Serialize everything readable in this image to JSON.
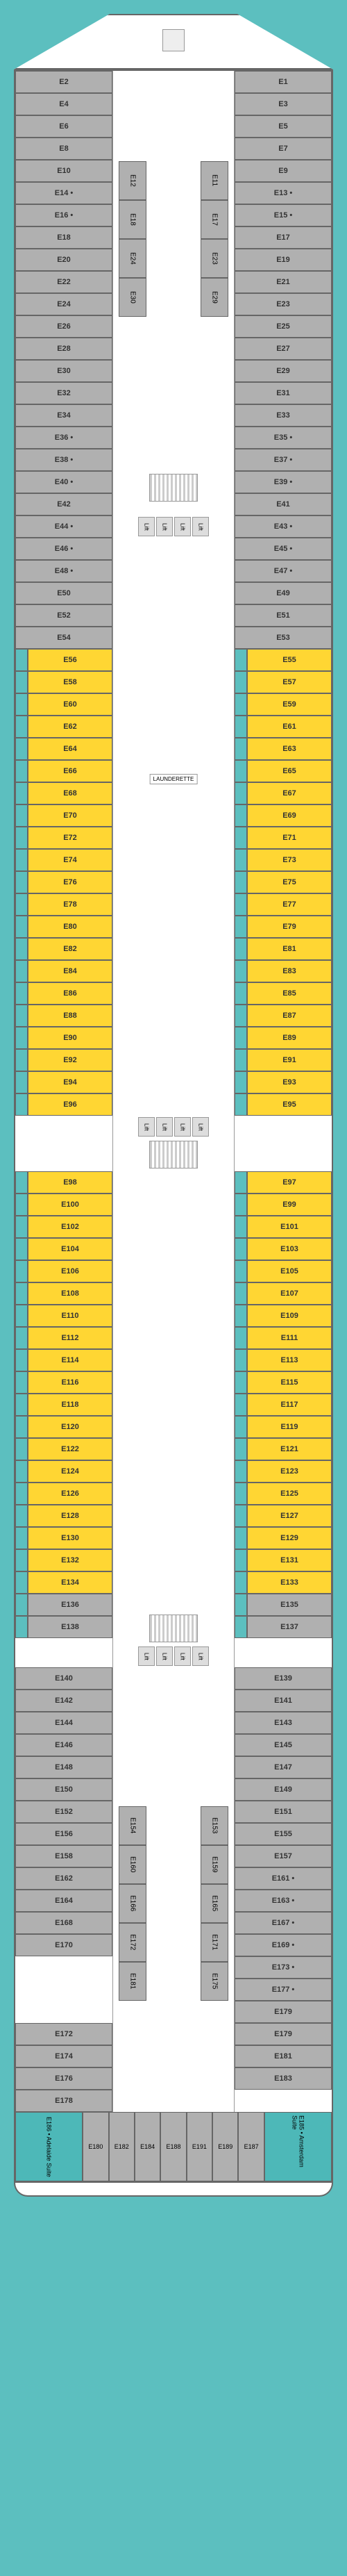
{
  "colors": {
    "water": "#5cbfbf",
    "gray_cabin": "#b0b0b0",
    "yellow_cabin": "#ffd633",
    "teal_cabin": "#4db8b8",
    "white": "#ffffff",
    "border": "#666666"
  },
  "labels": {
    "lift": "Lift",
    "launderette": "LAUNDERETTE"
  },
  "suites": {
    "port": "E186 • Adelaide Suite",
    "starboard": "E185 • Amsterdam Suite"
  },
  "sections": {
    "forward_gray": {
      "port": [
        "E2",
        "E4",
        "E6",
        "E8",
        "E10",
        "E14 •",
        "E16 •",
        "E18",
        "E20",
        "E22",
        "E24",
        "E26",
        "E28",
        "E30",
        "E32",
        "E34",
        "E36 •",
        "E38 •",
        "E40 •",
        "E42",
        "E44 •",
        "E46 •",
        "E48 •",
        "E50"
      ],
      "starboard": [
        "E1",
        "E3",
        "E5",
        "E7",
        "E9",
        "E13 •",
        "E15 •",
        "E17",
        "E19",
        "E21",
        "E23",
        "E25",
        "E27",
        "E29",
        "E31",
        "E33",
        "E35 •",
        "E37 •",
        "E39 •",
        "E41",
        "E43 •",
        "E45 •",
        "E47 •",
        "E49"
      ],
      "inner_port": [
        "E12",
        "E18",
        "E24",
        "E30"
      ],
      "inner_starboard": [
        "E11",
        "E17",
        "E23",
        "E29"
      ]
    },
    "transition_gray": {
      "port": [
        "E52",
        "E54"
      ],
      "starboard": [
        "E51",
        "E53"
      ]
    },
    "midship_yellow_1": {
      "port": [
        "E56",
        "E58",
        "E60",
        "E62",
        "E64",
        "E66",
        "E68",
        "E70",
        "E72",
        "E74",
        "E76",
        "E78",
        "E80",
        "E82",
        "E84",
        "E86",
        "E88",
        "E90",
        "E92",
        "E94",
        "E96"
      ],
      "starboard": [
        "E55",
        "E57",
        "E59",
        "E61",
        "E63",
        "E65",
        "E67",
        "E69",
        "E71",
        "E73",
        "E75",
        "E77",
        "E79",
        "E81",
        "E83",
        "E85",
        "E87",
        "E89",
        "E91",
        "E93",
        "E95"
      ]
    },
    "midship_yellow_2": {
      "port": [
        "E98",
        "E100",
        "E102",
        "E104",
        "E106",
        "E108",
        "E110",
        "E112",
        "E114",
        "E116",
        "E118",
        "E120",
        "E122",
        "E124",
        "E126",
        "E128",
        "E130",
        "E132",
        "E134"
      ],
      "starboard": [
        "E97",
        "E99",
        "E101",
        "E103",
        "E105",
        "E107",
        "E109",
        "E111",
        "E113",
        "E115",
        "E117",
        "E119",
        "E121",
        "E123",
        "E125",
        "E127",
        "E129",
        "E131",
        "E133"
      ]
    },
    "aft_transition": {
      "port": [
        "E136",
        "E138"
      ],
      "starboard": [
        "E135",
        "E137"
      ]
    },
    "aft_gray": {
      "port": [
        "E140",
        "E142",
        "E144",
        "E146",
        "E148",
        "E150",
        "E152",
        "E156",
        "E158",
        "E162",
        "E164",
        "E168",
        "E170"
      ],
      "starboard": [
        "E139",
        "E141",
        "E143",
        "E145",
        "E147",
        "E149",
        "E151",
        "E155",
        "E157",
        "E161 •",
        "E163 •",
        "E167 •",
        "E169 •",
        "E173 •",
        "E177 •",
        "E179"
      ],
      "inner_port": [
        "E154",
        "E160",
        "E166",
        "E172",
        "E181"
      ],
      "inner_starboard": [
        "E153",
        "E159",
        "E165",
        "E171",
        "E175"
      ]
    },
    "stern_row": {
      "port": [
        "E172",
        "E174",
        "E176",
        "E178"
      ],
      "starboard": [
        "E179",
        "E181",
        "E183"
      ]
    },
    "stern_suites": {
      "cabins": [
        "E180",
        "E182",
        "E184",
        "E188",
        "E191",
        "E189",
        "E187"
      ]
    }
  }
}
